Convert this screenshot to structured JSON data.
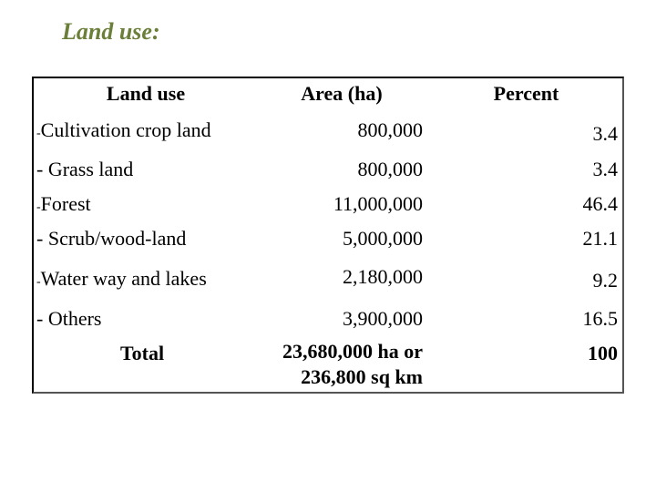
{
  "title": "Land use:",
  "table": {
    "headers": {
      "land_use": "Land use",
      "area": "Area (ha)",
      "percent": "Percent"
    },
    "rows": [
      {
        "dash": "-",
        "label": "Cultivation crop land",
        "area": "800,000",
        "percent": "3.4"
      },
      {
        "dash": "- ",
        "label": "Grass land",
        "area": "800,000",
        "percent": "3.4"
      },
      {
        "dash": "-",
        "label": "Forest",
        "area": "11,000,000",
        "percent": "46.4"
      },
      {
        "dash": "- ",
        "label": "Scrub/wood-land",
        "area": "5,000,000",
        "percent": "21.1"
      },
      {
        "dash": "-",
        "label": "Water way and lakes",
        "area": "2,180,000",
        "percent": "9.2"
      },
      {
        "dash": "- ",
        "label": "Others",
        "area": "3,900,000",
        "percent": "16.5"
      }
    ],
    "total": {
      "label": "Total",
      "area_line1": "23,680,000  ha or",
      "area_line2": "236,800  sq km",
      "percent": "100"
    }
  }
}
